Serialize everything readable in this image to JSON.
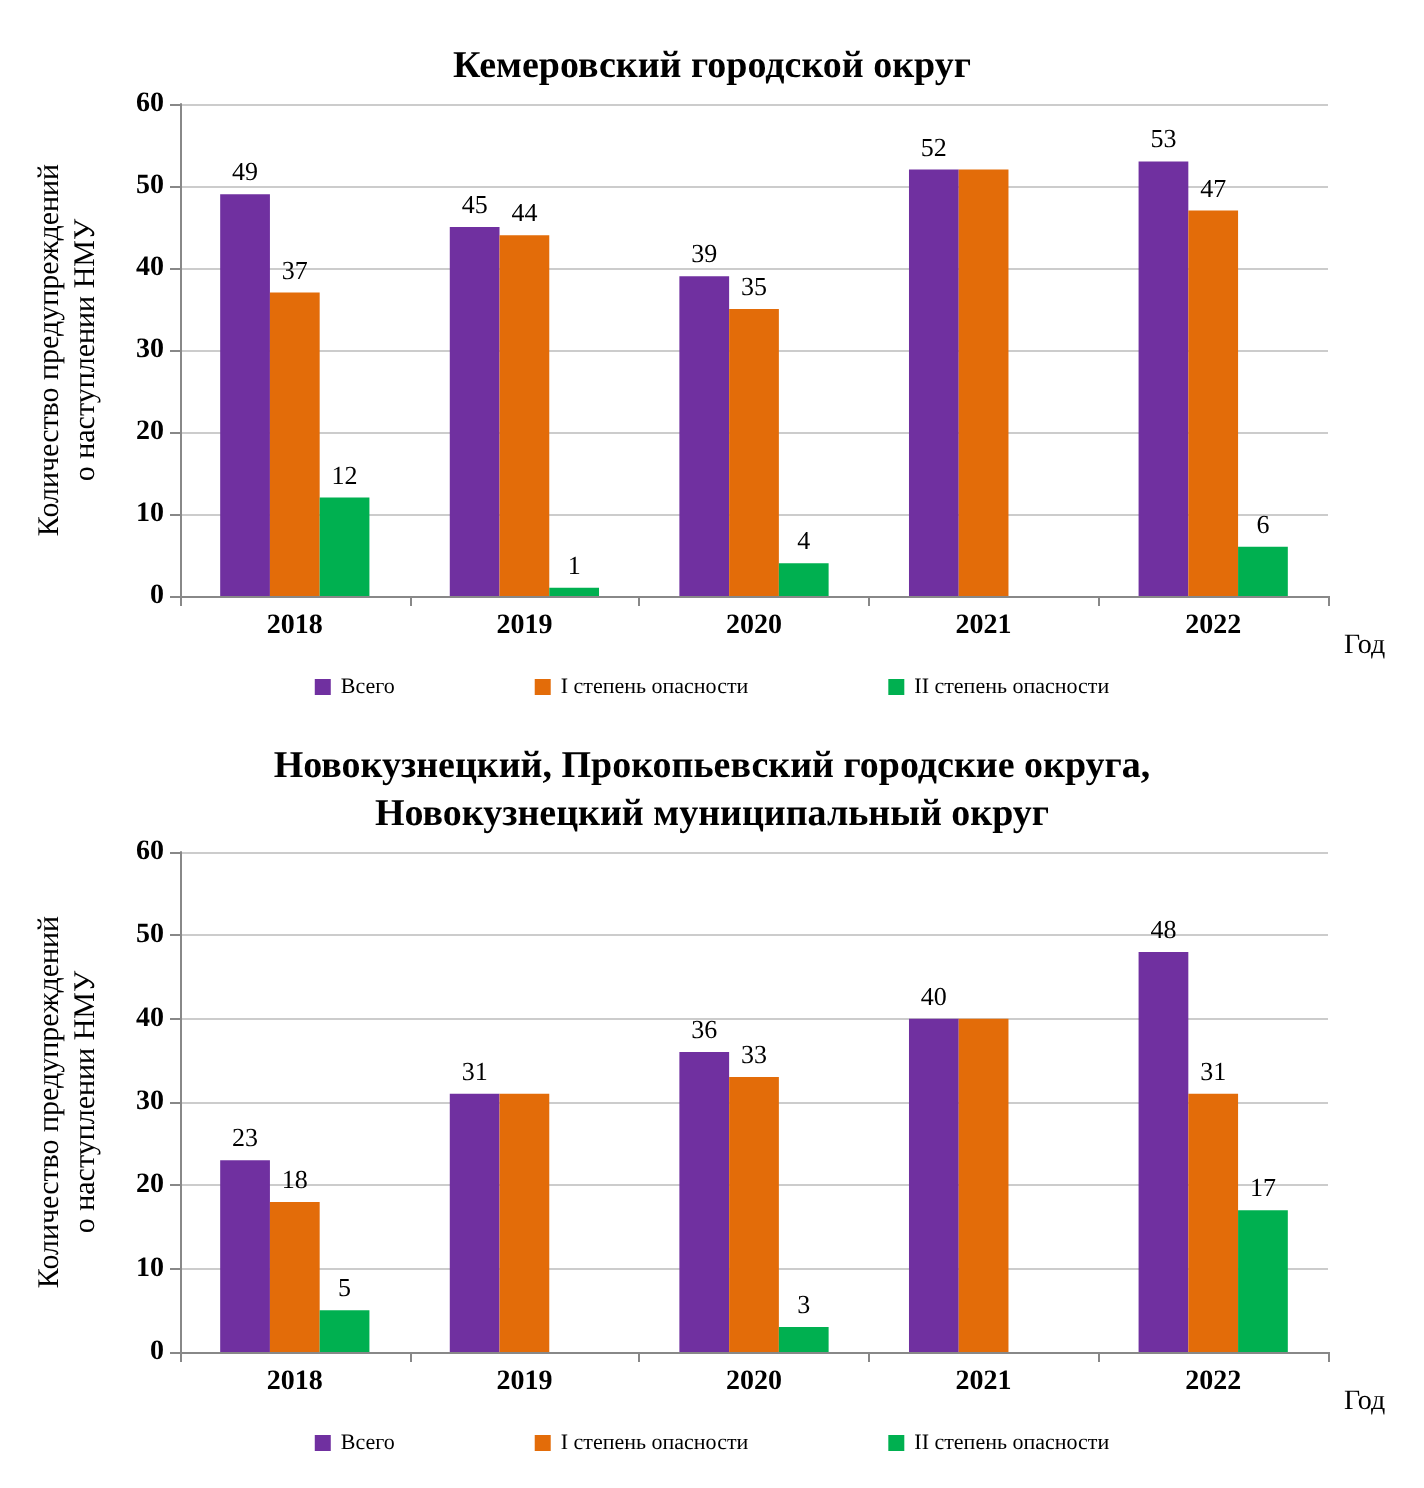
{
  "chart_data": [
    {
      "type": "bar",
      "title": "Кемеровский городской округ",
      "xlabel": "Год",
      "ylabel": "Количество предупреждений\nо наступлении НМУ",
      "categories": [
        "2018",
        "2019",
        "2020",
        "2021",
        "2022"
      ],
      "ylim": [
        0,
        60
      ],
      "yticks": [
        0,
        10,
        20,
        30,
        40,
        50,
        60
      ],
      "grid": "y",
      "legend": "bottom",
      "series": [
        {
          "name": "Всего",
          "color": "#7030a0",
          "values": [
            49,
            45,
            39,
            52,
            53
          ],
          "value_labels": [
            "49",
            "45",
            "39",
            "52",
            "53"
          ]
        },
        {
          "name": "I степень опасности",
          "color": "#e36c09",
          "values": [
            37,
            44,
            35,
            52,
            47
          ],
          "value_labels": [
            "37",
            "44",
            "35",
            null,
            "47"
          ]
        },
        {
          "name": "II степень опасности",
          "color": "#00b050",
          "values": [
            12,
            1,
            4,
            null,
            6
          ],
          "value_labels": [
            "12",
            "1",
            "4",
            null,
            "6"
          ]
        }
      ]
    },
    {
      "type": "bar",
      "title": "Новокузнецкий, Прокопьевский городские округа,\nНовокузнецкий муниципальный округ",
      "xlabel": "Год",
      "ylabel": "Количество предупреждений\nо наступлении НМУ",
      "categories": [
        "2018",
        "2019",
        "2020",
        "2021",
        "2022"
      ],
      "ylim": [
        0,
        60
      ],
      "yticks": [
        0,
        10,
        20,
        30,
        40,
        50,
        60
      ],
      "grid": "y",
      "legend": "bottom",
      "series": [
        {
          "name": "Всего",
          "color": "#7030a0",
          "values": [
            23,
            31,
            36,
            40,
            48
          ],
          "value_labels": [
            "23",
            "31",
            "36",
            "40",
            "48"
          ]
        },
        {
          "name": "I степень опасности",
          "color": "#e36c09",
          "values": [
            18,
            31,
            33,
            40,
            31
          ],
          "value_labels": [
            "18",
            null,
            "33",
            null,
            "31"
          ]
        },
        {
          "name": "II степень опасности",
          "color": "#00b050",
          "values": [
            5,
            null,
            3,
            null,
            17
          ],
          "value_labels": [
            "5",
            null,
            "3",
            null,
            "17"
          ]
        }
      ]
    }
  ]
}
